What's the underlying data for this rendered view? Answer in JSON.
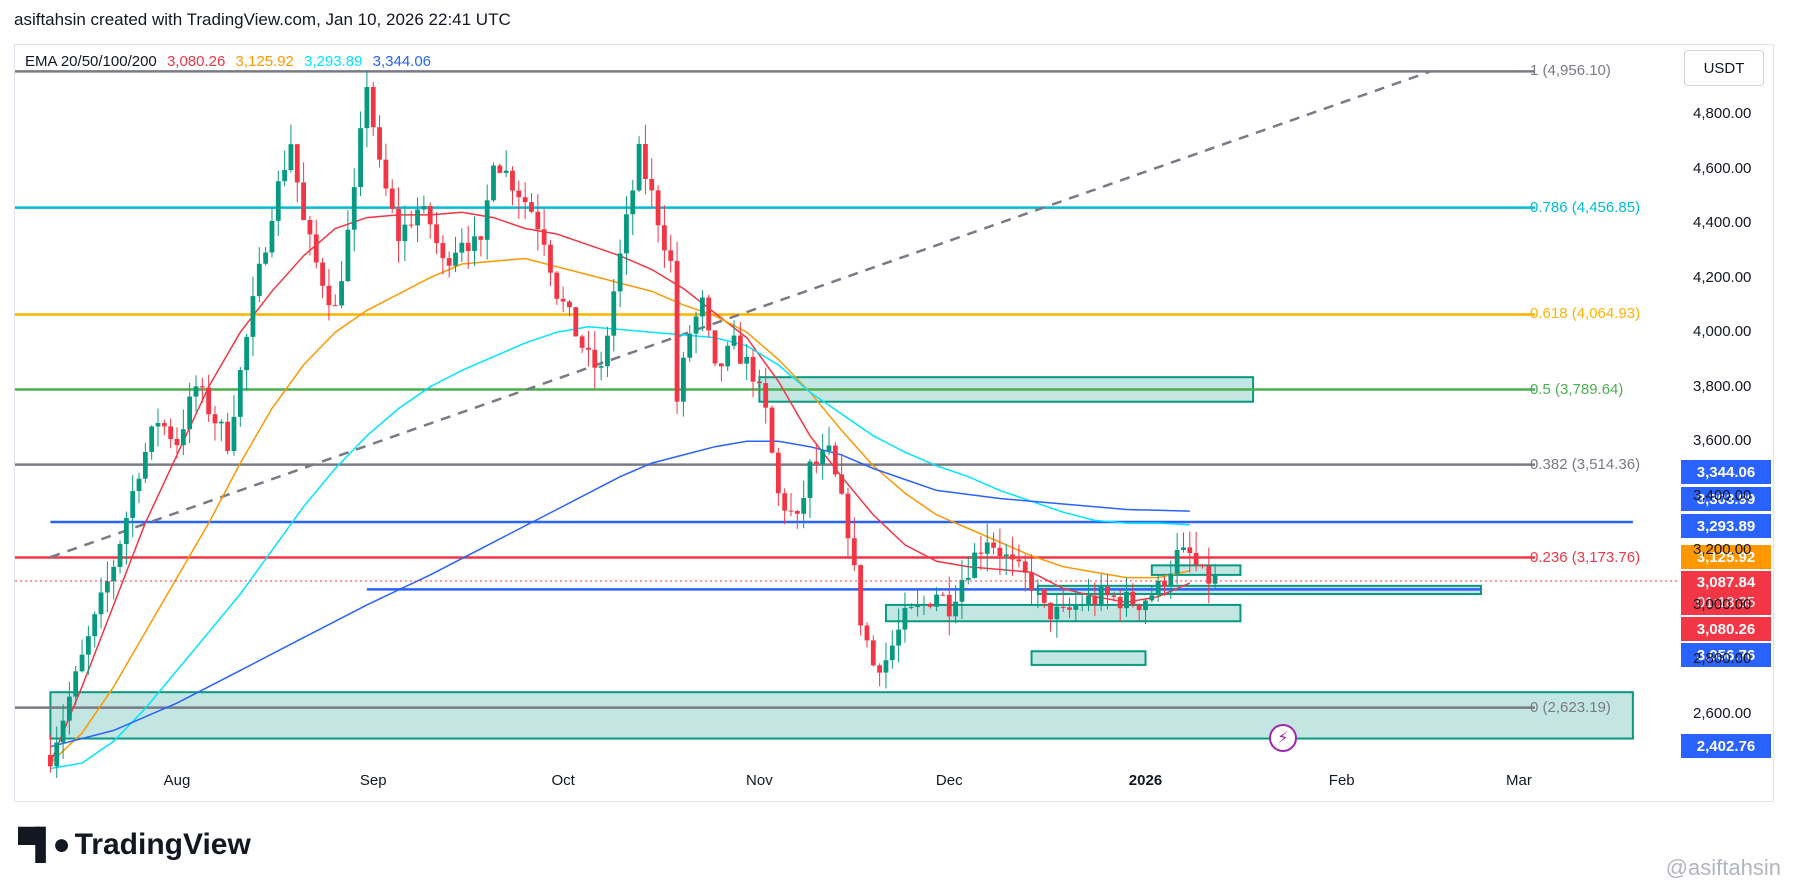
{
  "header": {
    "title": "asiftahsin created with TradingView.com, Jan 10, 2026 22:41 UTC"
  },
  "quote_currency": "USDT",
  "ema_legend": {
    "label": "EMA 20/50/100/200",
    "values": [
      {
        "text": "3,080.26",
        "color": "#f23645"
      },
      {
        "text": "3,125.92",
        "color": "#ff9800"
      },
      {
        "text": "3,293.89",
        "color": "#00e5ff"
      },
      {
        "text": "3,344.06",
        "color": "#2962ff"
      }
    ]
  },
  "price_tags": [
    {
      "text": "3,344.06",
      "color": "#2962ff"
    },
    {
      "text": "3,303.99",
      "color": "#2962ff"
    },
    {
      "text": "3,293.89",
      "color": "#2962ff"
    },
    {
      "text": "3,125.92",
      "color": "#ff9800"
    },
    {
      "text": "3,087.84",
      "sub": "01:18:35",
      "color": "#f23645"
    },
    {
      "text": "3,080.26",
      "color": "#f23645"
    },
    {
      "text": "3,056.76",
      "color": "#2962ff"
    },
    {
      "text": "2,402.76",
      "color": "#2962ff"
    }
  ],
  "footer": {
    "brand": "TradingView",
    "watermark": "@asiftahsin"
  },
  "chart_data": {
    "type": "candlestick",
    "title": "EMA 20/50/100/200",
    "ylim": [
      2400,
      5000
    ],
    "y_ticks": [
      2600,
      2800,
      3000,
      3200,
      3400,
      3600,
      3800,
      4000,
      4200,
      4400,
      4600,
      4800
    ],
    "y_tick_labels": [
      "2,600.00",
      "2,800.00",
      "3,000.00",
      "3,200.00",
      "3,400.00",
      "3,600.00",
      "3,800.00",
      "4,000.00",
      "4,200.00",
      "4,400.00",
      "4,600.00",
      "4,800.00"
    ],
    "x_range_days": [
      -20,
      230
    ],
    "x_ticks": [
      {
        "label": "Aug",
        "day": 0
      },
      {
        "label": "Sep",
        "day": 31
      },
      {
        "label": "Oct",
        "day": 61
      },
      {
        "label": "Nov",
        "day": 92
      },
      {
        "label": "Dec",
        "day": 122
      },
      {
        "label": "2026",
        "day": 153,
        "bold": true
      },
      {
        "label": "Feb",
        "day": 184
      },
      {
        "label": "Mar",
        "day": 212
      }
    ],
    "fib_levels": [
      {
        "ratio": "1",
        "price": 4956.1,
        "label": "1 (4,956.10)",
        "color": "#787b86"
      },
      {
        "ratio": "0.786",
        "price": 4456.85,
        "label": "0.786 (4,456.85)",
        "color": "#00bcd4"
      },
      {
        "ratio": "0.618",
        "price": 4064.93,
        "label": "0.618 (4,064.93)",
        "color": "#ffb300"
      },
      {
        "ratio": "0.5",
        "price": 3789.64,
        "label": "0.5 (3,789.64)",
        "color": "#4caf50"
      },
      {
        "ratio": "0.382",
        "price": 3514.36,
        "label": "0.382 (3,514.36)",
        "color": "#787b86"
      },
      {
        "ratio": "0.236",
        "price": 3173.76,
        "label": "0.236 (3,173.76)",
        "color": "#f23645"
      },
      {
        "ratio": "0",
        "price": 2623.19,
        "label": "0 (2,623.19)",
        "color": "#787b86"
      }
    ],
    "horizontal_lines": [
      {
        "price": 3303.99,
        "color": "#2962ff",
        "from_day": -20,
        "to_day": 230
      },
      {
        "price": 3056.76,
        "color": "#2962ff",
        "from_day": 30,
        "to_day": 206
      }
    ],
    "zones": [
      {
        "from_day": 92,
        "to_day": 170,
        "top": 3835,
        "bottom": 3745
      },
      {
        "from_day": 112,
        "to_day": 168,
        "top": 3000,
        "bottom": 2940
      },
      {
        "from_day": 135,
        "to_day": 153,
        "top": 2830,
        "bottom": 2780
      },
      {
        "from_day": 136,
        "to_day": 206,
        "top": 3070,
        "bottom": 3040
      },
      {
        "from_day": 154,
        "to_day": 168,
        "top": 3145,
        "bottom": 3110
      },
      {
        "from_day": -20,
        "to_day": 230,
        "top": 2680,
        "bottom": 2510
      }
    ],
    "trendline": {
      "start": {
        "day": -20,
        "price": 3175
      },
      "end": {
        "day": 198,
        "price": 4956
      }
    },
    "ema": [
      {
        "name": "EMA 20",
        "color": "#f23645",
        "points": [
          [
            -20,
            2420
          ],
          [
            -15,
            2700
          ],
          [
            -10,
            3000
          ],
          [
            -5,
            3300
          ],
          [
            0,
            3550
          ],
          [
            5,
            3800
          ],
          [
            10,
            4000
          ],
          [
            15,
            4150
          ],
          [
            20,
            4280
          ],
          [
            25,
            4380
          ],
          [
            30,
            4420
          ],
          [
            35,
            4430
          ],
          [
            40,
            4430
          ],
          [
            45,
            4440
          ],
          [
            50,
            4420
          ],
          [
            55,
            4380
          ],
          [
            60,
            4360
          ],
          [
            65,
            4320
          ],
          [
            70,
            4280
          ],
          [
            75,
            4230
          ],
          [
            80,
            4160
          ],
          [
            85,
            4070
          ],
          [
            90,
            3980
          ],
          [
            95,
            3820
          ],
          [
            100,
            3620
          ],
          [
            105,
            3470
          ],
          [
            110,
            3330
          ],
          [
            115,
            3220
          ],
          [
            120,
            3160
          ],
          [
            125,
            3140
          ],
          [
            130,
            3130
          ],
          [
            135,
            3120
          ],
          [
            140,
            3060
          ],
          [
            145,
            3030
          ],
          [
            150,
            3010
          ],
          [
            155,
            3030
          ],
          [
            160,
            3080
          ]
        ]
      },
      {
        "name": "EMA 50",
        "color": "#ff9800",
        "points": [
          [
            -20,
            2420
          ],
          [
            -15,
            2530
          ],
          [
            -10,
            2700
          ],
          [
            -5,
            2900
          ],
          [
            0,
            3100
          ],
          [
            5,
            3300
          ],
          [
            10,
            3520
          ],
          [
            15,
            3720
          ],
          [
            20,
            3880
          ],
          [
            25,
            4000
          ],
          [
            30,
            4080
          ],
          [
            35,
            4140
          ],
          [
            40,
            4200
          ],
          [
            45,
            4250
          ],
          [
            50,
            4260
          ],
          [
            55,
            4270
          ],
          [
            60,
            4240
          ],
          [
            65,
            4210
          ],
          [
            70,
            4180
          ],
          [
            75,
            4150
          ],
          [
            80,
            4100
          ],
          [
            85,
            4060
          ],
          [
            90,
            4000
          ],
          [
            95,
            3900
          ],
          [
            100,
            3780
          ],
          [
            105,
            3640
          ],
          [
            110,
            3510
          ],
          [
            115,
            3410
          ],
          [
            120,
            3330
          ],
          [
            125,
            3280
          ],
          [
            130,
            3230
          ],
          [
            135,
            3180
          ],
          [
            140,
            3140
          ],
          [
            145,
            3120
          ],
          [
            150,
            3100
          ],
          [
            155,
            3100
          ],
          [
            160,
            3125
          ]
        ]
      },
      {
        "name": "EMA 100",
        "color": "#00e5ff",
        "points": [
          [
            -20,
            2400
          ],
          [
            -15,
            2420
          ],
          [
            -10,
            2500
          ],
          [
            -5,
            2620
          ],
          [
            0,
            2760
          ],
          [
            5,
            2900
          ],
          [
            10,
            3040
          ],
          [
            15,
            3200
          ],
          [
            20,
            3360
          ],
          [
            25,
            3500
          ],
          [
            30,
            3620
          ],
          [
            35,
            3720
          ],
          [
            40,
            3800
          ],
          [
            45,
            3860
          ],
          [
            50,
            3910
          ],
          [
            55,
            3960
          ],
          [
            60,
            4000
          ],
          [
            65,
            4020
          ],
          [
            70,
            4010
          ],
          [
            75,
            4000
          ],
          [
            80,
            3990
          ],
          [
            85,
            3980
          ],
          [
            90,
            3950
          ],
          [
            95,
            3880
          ],
          [
            100,
            3780
          ],
          [
            105,
            3700
          ],
          [
            110,
            3620
          ],
          [
            115,
            3560
          ],
          [
            120,
            3510
          ],
          [
            125,
            3470
          ],
          [
            130,
            3420
          ],
          [
            135,
            3380
          ],
          [
            140,
            3340
          ],
          [
            145,
            3310
          ],
          [
            150,
            3300
          ],
          [
            155,
            3300
          ],
          [
            160,
            3294
          ]
        ]
      },
      {
        "name": "EMA 200",
        "color": "#2962ff",
        "points": [
          [
            -20,
            2480
          ],
          [
            -10,
            2540
          ],
          [
            0,
            2640
          ],
          [
            10,
            2760
          ],
          [
            20,
            2880
          ],
          [
            30,
            3000
          ],
          [
            40,
            3110
          ],
          [
            50,
            3230
          ],
          [
            60,
            3350
          ],
          [
            70,
            3470
          ],
          [
            75,
            3520
          ],
          [
            80,
            3550
          ],
          [
            85,
            3580
          ],
          [
            90,
            3600
          ],
          [
            95,
            3600
          ],
          [
            100,
            3580
          ],
          [
            105,
            3550
          ],
          [
            110,
            3500
          ],
          [
            115,
            3460
          ],
          [
            120,
            3420
          ],
          [
            130,
            3390
          ],
          [
            140,
            3370
          ],
          [
            150,
            3350
          ],
          [
            160,
            3344
          ]
        ]
      }
    ],
    "candle_path": [
      [
        -20,
        2450
      ],
      [
        -15,
        2800
      ],
      [
        -10,
        3150
      ],
      [
        -6,
        3500
      ],
      [
        -3,
        3680
      ],
      [
        0,
        3600
      ],
      [
        3,
        3800
      ],
      [
        8,
        3600
      ],
      [
        12,
        4100
      ],
      [
        15,
        4450
      ],
      [
        18,
        4700
      ],
      [
        20,
        4400
      ],
      [
        22,
        4250
      ],
      [
        25,
        4080
      ],
      [
        28,
        4500
      ],
      [
        30,
        4920
      ],
      [
        32,
        4600
      ],
      [
        35,
        4350
      ],
      [
        38,
        4450
      ],
      [
        40,
        4400
      ],
      [
        42,
        4250
      ],
      [
        45,
        4350
      ],
      [
        48,
        4300
      ],
      [
        50,
        4650
      ],
      [
        53,
        4550
      ],
      [
        56,
        4450
      ],
      [
        58,
        4350
      ],
      [
        60,
        4150
      ],
      [
        62,
        4050
      ],
      [
        65,
        3900
      ],
      [
        67,
        3850
      ],
      [
        69,
        4150
      ],
      [
        71,
        4400
      ],
      [
        73,
        4650
      ],
      [
        75,
        4500
      ],
      [
        78,
        4250
      ],
      [
        79,
        3750
      ],
      [
        81,
        4000
      ],
      [
        83,
        4100
      ],
      [
        85,
        3850
      ],
      [
        88,
        3950
      ],
      [
        91,
        3850
      ],
      [
        93,
        3700
      ],
      [
        95,
        3400
      ],
      [
        98,
        3300
      ],
      [
        100,
        3500
      ],
      [
        103,
        3550
      ],
      [
        106,
        3280
      ],
      [
        108,
        2950
      ],
      [
        110,
        2780
      ],
      [
        112,
        2800
      ],
      [
        115,
        2950
      ],
      [
        118,
        3000
      ],
      [
        120,
        3050
      ],
      [
        122,
        3000
      ],
      [
        124,
        3100
      ],
      [
        126,
        3180
      ],
      [
        128,
        3250
      ],
      [
        130,
        3200
      ],
      [
        132,
        3140
      ],
      [
        135,
        3080
      ],
      [
        137,
        2980
      ],
      [
        140,
        2960
      ],
      [
        143,
        3010
      ],
      [
        146,
        3030
      ],
      [
        149,
        3020
      ],
      [
        152,
        3010
      ],
      [
        155,
        3060
      ],
      [
        158,
        3180
      ],
      [
        160,
        3180
      ],
      [
        162,
        3100
      ],
      [
        164,
        3088
      ]
    ]
  }
}
